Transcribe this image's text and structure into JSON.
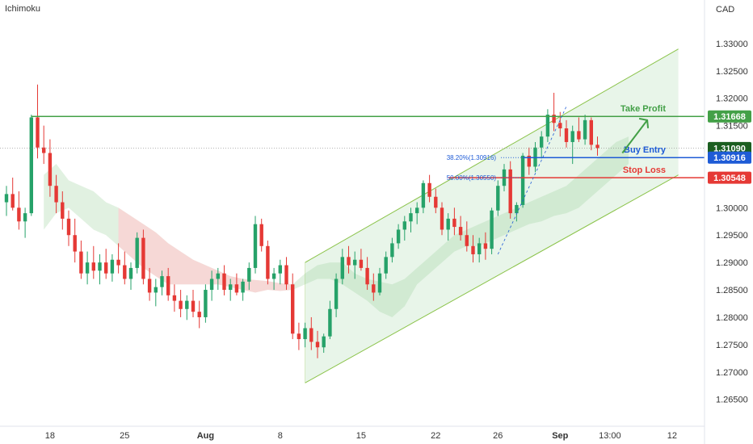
{
  "chart_data": {
    "type": "candlestick",
    "indicator": "Ichimoku",
    "currency": "CAD",
    "ylim": [
      1.262,
      1.335
    ],
    "y_ticks": [
      "1.33000",
      "1.32500",
      "1.32000",
      "1.31500",
      "1.31000",
      "1.30500",
      "1.30000",
      "1.29500",
      "1.29000",
      "1.28500",
      "1.28000",
      "1.27500",
      "1.27000",
      "1.26500"
    ],
    "x_ticks": [
      {
        "label": "18",
        "i": 7
      },
      {
        "label": "25",
        "i": 19
      },
      {
        "label": "Aug",
        "i": 32
      },
      {
        "label": "8",
        "i": 44
      },
      {
        "label": "15",
        "i": 57
      },
      {
        "label": "22",
        "i": 69
      },
      {
        "label": "26",
        "i": 79
      },
      {
        "label": "Sep",
        "i": 89
      },
      {
        "label": "13:00",
        "i": 97
      },
      {
        "label": "12",
        "i": 107
      }
    ],
    "candles": [
      [
        1.301,
        1.304,
        1.2985,
        1.3025
      ],
      [
        1.3025,
        1.3055,
        1.2995,
        1.3
      ],
      [
        1.3,
        1.303,
        1.296,
        1.2975
      ],
      [
        1.2975,
        1.3,
        1.2945,
        1.299
      ],
      [
        1.299,
        1.317,
        1.2985,
        1.3165
      ],
      [
        1.3165,
        1.3225,
        1.309,
        1.311
      ],
      [
        1.311,
        1.315,
        1.308,
        1.31
      ],
      [
        1.31,
        1.3125,
        1.302,
        1.304
      ],
      [
        1.304,
        1.306,
        1.299,
        1.301
      ],
      [
        1.301,
        1.303,
        1.296,
        1.298
      ],
      [
        1.298,
        1.2995,
        1.293,
        1.295
      ],
      [
        1.295,
        1.298,
        1.29,
        1.292
      ],
      [
        1.292,
        1.294,
        1.287,
        1.288
      ],
      [
        1.288,
        1.292,
        1.286,
        1.29
      ],
      [
        1.29,
        1.293,
        1.287,
        1.2885
      ],
      [
        1.2885,
        1.2915,
        1.286,
        1.29
      ],
      [
        1.29,
        1.2925,
        1.287,
        1.288
      ],
      [
        1.288,
        1.2915,
        1.2865,
        1.2905
      ],
      [
        1.2905,
        1.2935,
        1.288,
        1.2895
      ],
      [
        1.2895,
        1.292,
        1.286,
        1.287
      ],
      [
        1.287,
        1.29,
        1.285,
        1.289
      ],
      [
        1.289,
        1.2955,
        1.288,
        1.2945
      ],
      [
        1.2945,
        1.296,
        1.286,
        1.287
      ],
      [
        1.287,
        1.289,
        1.283,
        1.2845
      ],
      [
        1.2845,
        1.287,
        1.282,
        1.2855
      ],
      [
        1.2855,
        1.2885,
        1.284,
        1.2875
      ],
      [
        1.2875,
        1.289,
        1.283,
        1.284
      ],
      [
        1.284,
        1.286,
        1.281,
        1.283
      ],
      [
        1.283,
        1.285,
        1.28,
        1.2815
      ],
      [
        1.2815,
        1.284,
        1.2795,
        1.283
      ],
      [
        1.283,
        1.285,
        1.28,
        1.281
      ],
      [
        1.281,
        1.283,
        1.278,
        1.28
      ],
      [
        1.28,
        1.286,
        1.279,
        1.285
      ],
      [
        1.285,
        1.2885,
        1.283,
        1.287
      ],
      [
        1.287,
        1.289,
        1.285,
        1.288
      ],
      [
        1.288,
        1.2895,
        1.284,
        1.285
      ],
      [
        1.285,
        1.287,
        1.283,
        1.286
      ],
      [
        1.286,
        1.288,
        1.284,
        1.2845
      ],
      [
        1.2845,
        1.287,
        1.283,
        1.2865
      ],
      [
        1.2865,
        1.29,
        1.285,
        1.289
      ],
      [
        1.289,
        1.2985,
        1.288,
        1.297
      ],
      [
        1.297,
        1.298,
        1.292,
        1.293
      ],
      [
        1.293,
        1.294,
        1.286,
        1.287
      ],
      [
        1.287,
        1.289,
        1.285,
        1.288
      ],
      [
        1.288,
        1.2905,
        1.286,
        1.2895
      ],
      [
        1.2895,
        1.291,
        1.285,
        1.286
      ],
      [
        1.286,
        1.288,
        1.276,
        1.277
      ],
      [
        1.277,
        1.279,
        1.274,
        1.276
      ],
      [
        1.276,
        1.279,
        1.2745,
        1.278
      ],
      [
        1.278,
        1.28,
        1.274,
        1.2755
      ],
      [
        1.2755,
        1.2775,
        1.2725,
        1.2745
      ],
      [
        1.2745,
        1.277,
        1.2735,
        1.2765
      ],
      [
        1.2765,
        1.283,
        1.276,
        1.2815
      ],
      [
        1.2815,
        1.288,
        1.28,
        1.287
      ],
      [
        1.287,
        1.2925,
        1.286,
        1.291
      ],
      [
        1.291,
        1.293,
        1.288,
        1.2895
      ],
      [
        1.2895,
        1.292,
        1.287,
        1.2905
      ],
      [
        1.2905,
        1.2925,
        1.2885,
        1.289
      ],
      [
        1.289,
        1.291,
        1.285,
        1.286
      ],
      [
        1.286,
        1.288,
        1.283,
        1.2845
      ],
      [
        1.2845,
        1.289,
        1.284,
        1.288
      ],
      [
        1.288,
        1.292,
        1.287,
        1.291
      ],
      [
        1.291,
        1.2945,
        1.29,
        1.2935
      ],
      [
        1.2935,
        1.297,
        1.2925,
        1.296
      ],
      [
        1.296,
        1.2985,
        1.294,
        1.2975
      ],
      [
        1.2975,
        1.3,
        1.2955,
        1.299
      ],
      [
        1.299,
        1.301,
        1.297,
        1.3
      ],
      [
        1.3,
        1.305,
        1.299,
        1.3045
      ],
      [
        1.3045,
        1.306,
        1.301,
        1.302
      ],
      [
        1.302,
        1.3035,
        1.299,
        1.3
      ],
      [
        1.3,
        1.301,
        1.295,
        1.296
      ],
      [
        1.296,
        1.299,
        1.294,
        1.298
      ],
      [
        1.298,
        1.3,
        1.295,
        1.2965
      ],
      [
        1.2965,
        1.2985,
        1.294,
        1.295
      ],
      [
        1.295,
        1.2975,
        1.292,
        1.293
      ],
      [
        1.293,
        1.295,
        1.29,
        1.2915
      ],
      [
        1.2915,
        1.2945,
        1.29,
        1.2935
      ],
      [
        1.2935,
        1.2955,
        1.2905,
        1.2925
      ],
      [
        1.2925,
        1.3,
        1.2915,
        1.2995
      ],
      [
        1.2995,
        1.305,
        1.2985,
        1.304
      ],
      [
        1.304,
        1.308,
        1.303,
        1.307
      ],
      [
        1.307,
        1.3085,
        1.298,
        1.299
      ],
      [
        1.299,
        1.301,
        1.2975,
        1.3005
      ],
      [
        1.3005,
        1.31,
        1.3,
        1.3095
      ],
      [
        1.3095,
        1.311,
        1.306,
        1.3075
      ],
      [
        1.3075,
        1.312,
        1.3065,
        1.311
      ],
      [
        1.311,
        1.314,
        1.309,
        1.313
      ],
      [
        1.313,
        1.318,
        1.312,
        1.317
      ],
      [
        1.317,
        1.321,
        1.314,
        1.3155
      ],
      [
        1.3155,
        1.3175,
        1.313,
        1.3145
      ],
      [
        1.3145,
        1.316,
        1.311,
        1.312
      ],
      [
        1.312,
        1.315,
        1.308,
        1.314
      ],
      [
        1.314,
        1.3165,
        1.312,
        1.3125
      ],
      [
        1.3125,
        1.317,
        1.3115,
        1.316
      ],
      [
        1.316,
        1.3165,
        1.3105,
        1.3115
      ],
      [
        1.3115,
        1.313,
        1.3095,
        1.3109
      ]
    ],
    "ichimoku_cloud": [
      [
        6,
        1.306,
        1.296
      ],
      [
        8,
        1.308,
        1.299
      ],
      [
        10,
        1.305,
        1.3
      ],
      [
        12,
        1.304,
        1.298
      ],
      [
        14,
        1.303,
        1.296
      ],
      [
        16,
        1.301,
        1.295
      ],
      [
        18,
        1.3,
        1.293
      ],
      [
        20,
        1.2985,
        1.291
      ],
      [
        22,
        1.297,
        1.289
      ],
      [
        24,
        1.2955,
        1.2875
      ],
      [
        26,
        1.2935,
        1.286
      ],
      [
        28,
        1.292,
        1.286
      ],
      [
        30,
        1.2905,
        1.286
      ],
      [
        32,
        1.2895,
        1.286
      ],
      [
        34,
        1.2885,
        1.286
      ],
      [
        36,
        1.2875,
        1.2855
      ],
      [
        38,
        1.287,
        1.285
      ],
      [
        40,
        1.2868,
        1.2845
      ],
      [
        42,
        1.2866,
        1.285
      ],
      [
        44,
        1.2862,
        1.2848
      ],
      [
        46,
        1.286,
        1.285
      ],
      [
        48,
        1.288,
        1.286
      ],
      [
        50,
        1.2895,
        1.287
      ],
      [
        52,
        1.29,
        1.287
      ],
      [
        54,
        1.29,
        1.286
      ],
      [
        56,
        1.288,
        1.2845
      ],
      [
        58,
        1.287,
        1.283
      ],
      [
        60,
        1.2865,
        1.281
      ],
      [
        62,
        1.286,
        1.28
      ],
      [
        64,
        1.287,
        1.282
      ],
      [
        66,
        1.289,
        1.286
      ],
      [
        68,
        1.291,
        1.288
      ],
      [
        70,
        1.293,
        1.29
      ],
      [
        72,
        1.295,
        1.292
      ],
      [
        74,
        1.296,
        1.293
      ],
      [
        76,
        1.297,
        1.293
      ],
      [
        78,
        1.298,
        1.294
      ],
      [
        80,
        1.299,
        1.295
      ],
      [
        82,
        1.3,
        1.296
      ],
      [
        84,
        1.301,
        1.297
      ],
      [
        86,
        1.302,
        1.2975
      ],
      [
        88,
        1.303,
        1.2985
      ],
      [
        90,
        1.304,
        1.299
      ],
      [
        92,
        1.306,
        1.3
      ],
      [
        94,
        1.308,
        1.302
      ],
      [
        96,
        1.31,
        1.304
      ],
      [
        98,
        1.312,
        1.306
      ],
      [
        100,
        1.313,
        1.308
      ]
    ],
    "channel": {
      "upper": {
        "from": [
          48,
          1.29
        ],
        "to": [
          108,
          1.329
        ]
      },
      "lower": {
        "from": [
          48,
          1.268
        ],
        "to": [
          108,
          1.306
        ]
      }
    },
    "levels": [
      {
        "name": "Take Profit",
        "value": 1.31668,
        "value_label": "1.31668",
        "color": "#43a047"
      },
      {
        "name": "Buy Entry",
        "value": 1.30916,
        "value_label": "1.30916",
        "color": "#1e5bd6"
      },
      {
        "name": "Stop Loss",
        "value": 1.30548,
        "value_label": "1.30548",
        "color": "#e53935"
      }
    ],
    "current_price": {
      "value": 1.3109,
      "label": "1.31090",
      "color": "#1b5e20"
    },
    "fib_labels": [
      {
        "text": "38.20%(1.30916)",
        "value": 1.30916
      },
      {
        "text": "50.00%(1.30550)",
        "value": 1.3055
      }
    ]
  },
  "indicator_label": "Ichimoku",
  "axis_unit": "CAD",
  "colors": {
    "up": "#26a269",
    "down": "#e53935",
    "channel": "#8bc34a",
    "cloud_up": "#c8e6c9",
    "cloud_down": "#ffcdd2"
  }
}
